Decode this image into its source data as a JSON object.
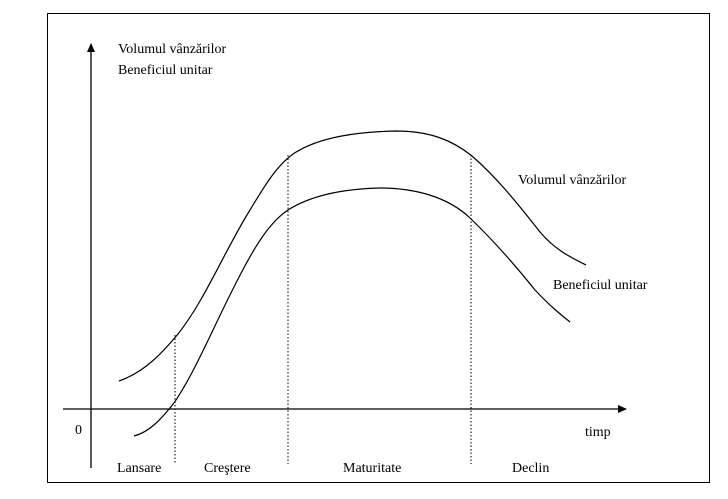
{
  "diagram": {
    "y_axis_label_line1": "Volumul vânzărilor",
    "y_axis_label_line2": "Beneficiul unitar",
    "x_axis_label": "timp",
    "origin_label": "0",
    "curve_sales_label": "Volumul vânzărilor",
    "curve_profit_label": "Beneficiul unitar",
    "stages": [
      "Lansare",
      "Creştere",
      "Maturitate",
      "Declin"
    ]
  },
  "colors": {
    "line": "#000000",
    "background": "#ffffff"
  }
}
